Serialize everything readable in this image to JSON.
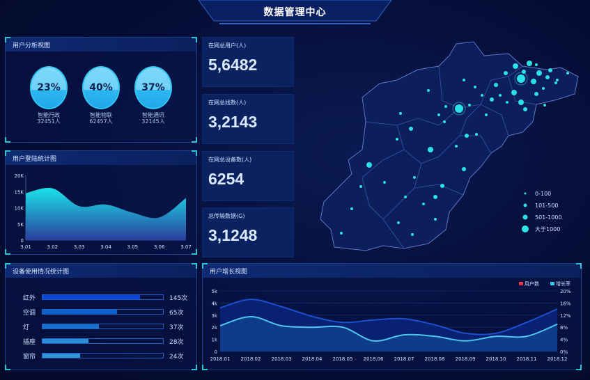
{
  "header": {
    "title": "数据管理中心"
  },
  "user_analysis": {
    "title": "用户分析视图",
    "items": [
      {
        "percent": "23%",
        "name": "智能行政",
        "count": "32451人",
        "level": 0.23
      },
      {
        "percent": "40%",
        "name": "智能物联",
        "count": "62457人",
        "level": 0.4
      },
      {
        "percent": "37%",
        "name": "智能通讯",
        "count": "32145人",
        "level": 0.37
      }
    ]
  },
  "stats": [
    {
      "label": "在网总用户(人)",
      "value": "5,6482"
    },
    {
      "label": "在网总线数(人)",
      "value": "3,2143"
    },
    {
      "label": "在网总设备数(人)",
      "value": "6254"
    },
    {
      "label": "总传输数据(G)",
      "value": "3,1248"
    }
  ],
  "map": {
    "legend": [
      "0-100",
      "101-500",
      "501-1000",
      "大于1000"
    ],
    "dot_color": "#2de2e6"
  },
  "device_usage": {
    "title": "设备使用情况统计图",
    "items": [
      {
        "name": "红外",
        "count": "145次",
        "fill": 0.81,
        "color": "#0a47d8"
      },
      {
        "name": "空调",
        "count": "65次",
        "fill": 0.62,
        "color": "#0f62cf"
      },
      {
        "name": "灯",
        "count": "37次",
        "fill": 0.47,
        "color": "#1570cf"
      },
      {
        "name": "插座",
        "count": "28次",
        "fill": 0.38,
        "color": "#2a8fd6"
      },
      {
        "name": "窗帘",
        "count": "24次",
        "fill": 0.31,
        "color": "#2f95d8"
      }
    ]
  },
  "chart_data": [
    {
      "type": "area",
      "title": "用户登陆统计图",
      "categories": [
        "3.01",
        "3.02",
        "3.03",
        "3.04",
        "3.05",
        "3.06",
        "3.07"
      ],
      "values": [
        14500,
        16000,
        10500,
        11000,
        8500,
        7000,
        13000
      ],
      "ylim": [
        0,
        20000
      ],
      "yticks": [
        "0",
        "5K",
        "10K",
        "15K",
        "20K"
      ],
      "colors": [
        "#1be3ea",
        "#2a3f9e"
      ]
    },
    {
      "type": "area",
      "title": "用户增长视图",
      "categories": [
        "2018.01",
        "2018.02",
        "2018.03",
        "2018.04",
        "2018.05",
        "2018.06",
        "2018.07",
        "2018.08",
        "2018.09",
        "2018.10",
        "2018.11",
        "2018.12"
      ],
      "series": [
        {
          "name": "用户数",
          "axis": "left",
          "values": [
            3600,
            4300,
            3700,
            2900,
            2400,
            2600,
            2700,
            2200,
            1500,
            1500,
            2400,
            3500
          ],
          "legend_color": "#e8334a",
          "line_color": "#1c4fd0"
        },
        {
          "name": "增长率",
          "axis": "right",
          "values": [
            8.5,
            11.5,
            8.5,
            8,
            8,
            3.5,
            5.5,
            5,
            3.5,
            5,
            5,
            9
          ],
          "legend_color": "#35c8ec",
          "line_color": "#4fc6f0"
        }
      ],
      "ylim_left": [
        0,
        5000
      ],
      "yticks_left": [
        "0",
        "1k",
        "2k",
        "3k",
        "4k",
        "5k"
      ],
      "ylim_right": [
        0,
        20
      ],
      "yticks_right": [
        "0%",
        "4%",
        "8%",
        "12%",
        "16%",
        "20%"
      ],
      "legend": "top-right"
    }
  ]
}
